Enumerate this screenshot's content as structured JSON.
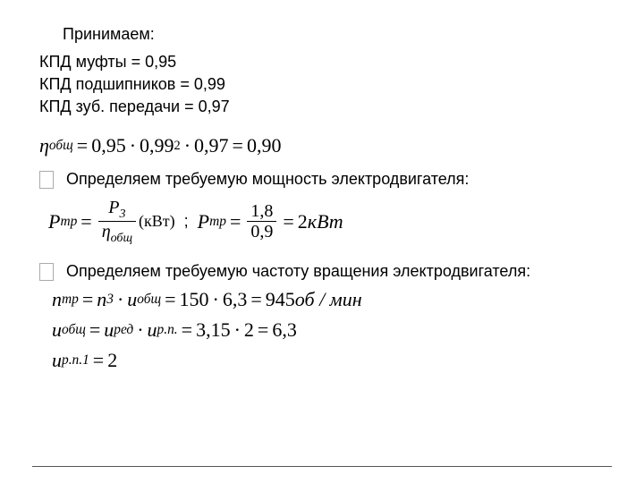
{
  "title": "Принимаем:",
  "kpd": {
    "line1": "КПД муфты = 0,95",
    "line2": "КПД подшипников = 0,99",
    "line3": "КПД зуб. передачи = 0,97"
  },
  "eta_total": {
    "lhs_sym": "η",
    "lhs_sub": "общ",
    "a": "0,95",
    "b": "0,99",
    "b_exp": "2",
    "c": "0,97",
    "result": "0,90"
  },
  "bullet1": "Определяем требуемую мощность электродвигателя:",
  "p_tr_formula": {
    "P": "P",
    "tr_sub": "тр",
    "num_sub": "3",
    "den_sym": "η",
    "den_sub": "общ",
    "unit": "(кВт)"
  },
  "p_tr_value": {
    "num": "1,8",
    "den": "0,9",
    "result": "2",
    "unit": "кВт"
  },
  "bullet2": "Определяем требуемую частоту вращения электродвигателя:",
  "n_tr": {
    "n": "n",
    "tr_sub": "тр",
    "n3_sub": "3",
    "u": "u",
    "u_sub": "общ",
    "v1": "150",
    "v2": "6,3",
    "result": "945",
    "unit": "об / мин"
  },
  "u_total": {
    "u": "u",
    "sub_total": "общ",
    "sub_red": "ред",
    "sub_rp": "р.п.",
    "v1": "3,15",
    "v2": "2",
    "result": "6,3"
  },
  "u_rp": {
    "u": "u",
    "sub": "р.п.1",
    "val": "2"
  },
  "sep": ";",
  "colors": {
    "text": "#000000",
    "bg": "#ffffff",
    "rule": "#555555",
    "box_border": "#aaaaaa"
  }
}
